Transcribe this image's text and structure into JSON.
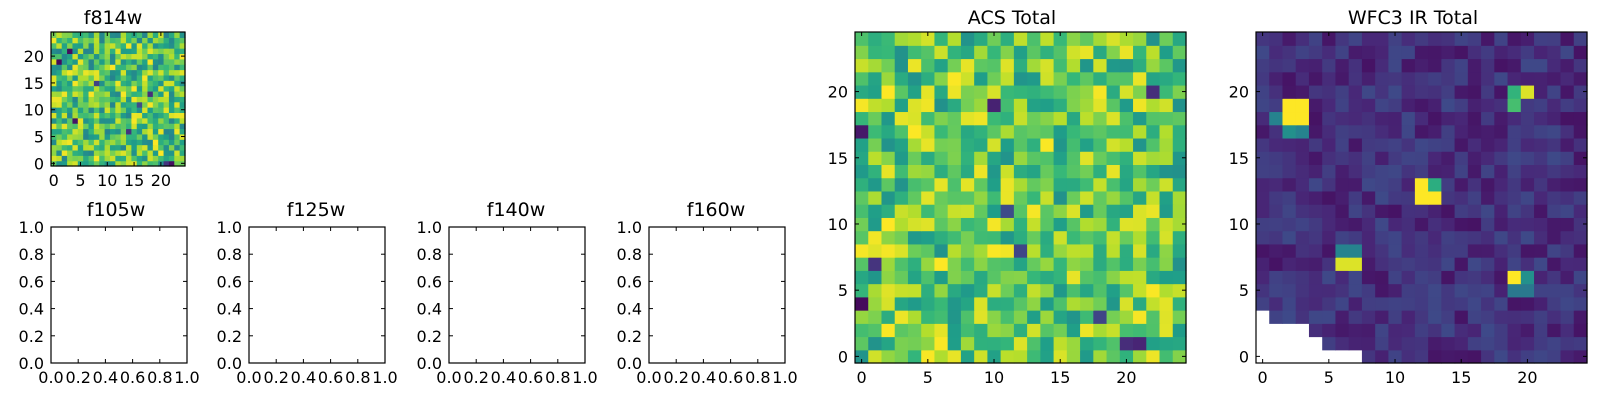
{
  "chart_data": [
    {
      "type": "heatmap",
      "title": "f814w",
      "grid_size": 25,
      "xlim": [
        -0.5,
        24.5
      ],
      "ylim": [
        -0.5,
        24.5
      ],
      "xticks": [
        0,
        5,
        10,
        15,
        20
      ],
      "yticks": [
        0,
        5,
        10,
        15,
        20
      ],
      "colormap": "viridis",
      "masked_cells": [],
      "hot_spots": [],
      "low_spots": [
        [
          1,
          19
        ],
        [
          4,
          8
        ],
        [
          8,
          15
        ],
        [
          14,
          6
        ],
        [
          16,
          11
        ],
        [
          21,
          0
        ],
        [
          22,
          0
        ],
        [
          3,
          21
        ],
        [
          18,
          13
        ]
      ],
      "base_range": [
        0.45,
        1.0
      ],
      "seed": 814
    },
    {
      "type": "heatmap",
      "title": "f105w",
      "empty": true,
      "xlim": [
        0.0,
        1.0
      ],
      "ylim": [
        0.0,
        1.0
      ],
      "xticks": [
        "0.0",
        "0.2",
        "0.4",
        "0.6",
        "0.8",
        "1.0"
      ],
      "yticks": [
        "0.0",
        "0.2",
        "0.4",
        "0.6",
        "0.8",
        "1.0"
      ]
    },
    {
      "type": "heatmap",
      "title": "f125w",
      "empty": true,
      "xlim": [
        0.0,
        1.0
      ],
      "ylim": [
        0.0,
        1.0
      ],
      "xticks": [
        "0.0",
        "0.2",
        "0.4",
        "0.6",
        "0.8",
        "1.0"
      ],
      "yticks": [
        "0.0",
        "0.2",
        "0.4",
        "0.6",
        "0.8",
        "1.0"
      ]
    },
    {
      "type": "heatmap",
      "title": "f140w",
      "empty": true,
      "xlim": [
        0.0,
        1.0
      ],
      "ylim": [
        0.0,
        1.0
      ],
      "xticks": [
        "0.0",
        "0.2",
        "0.4",
        "0.6",
        "0.8",
        "1.0"
      ],
      "yticks": [
        "0.0",
        "0.2",
        "0.4",
        "0.6",
        "0.8",
        "1.0"
      ]
    },
    {
      "type": "heatmap",
      "title": "f160w",
      "empty": true,
      "xlim": [
        0.0,
        1.0
      ],
      "ylim": [
        0.0,
        1.0
      ],
      "xticks": [
        "0.0",
        "0.2",
        "0.4",
        "0.6",
        "0.8",
        "1.0"
      ],
      "yticks": [
        "0.0",
        "0.2",
        "0.4",
        "0.6",
        "0.8",
        "1.0"
      ]
    },
    {
      "type": "heatmap",
      "title": "ACS Total",
      "grid_size": 25,
      "xlim": [
        -0.5,
        24.5
      ],
      "ylim": [
        -0.5,
        24.5
      ],
      "xticks": [
        0,
        5,
        10,
        15,
        20
      ],
      "yticks": [
        0,
        5,
        10,
        15,
        20
      ],
      "colormap": "viridis",
      "masked_cells": [],
      "hot_spots": [],
      "low_spots": [
        [
          0,
          17
        ],
        [
          0,
          4
        ],
        [
          1,
          7
        ],
        [
          10,
          19
        ],
        [
          11,
          11
        ],
        [
          20,
          1
        ],
        [
          21,
          1
        ],
        [
          22,
          20
        ],
        [
          12,
          8
        ],
        [
          18,
          3
        ]
      ],
      "base_range": [
        0.5,
        1.0
      ],
      "seed": 2024
    },
    {
      "type": "heatmap",
      "title": "WFC3 IR Total",
      "grid_size": 25,
      "xlim": [
        -0.5,
        24.5
      ],
      "ylim": [
        -0.5,
        24.5
      ],
      "xticks": [
        0,
        5,
        10,
        15,
        20
      ],
      "yticks": [
        0,
        5,
        10,
        15,
        20
      ],
      "colormap": "viridis",
      "masked_cells": [
        [
          0,
          0
        ],
        [
          1,
          0
        ],
        [
          2,
          0
        ],
        [
          3,
          0
        ],
        [
          4,
          0
        ],
        [
          5,
          0
        ],
        [
          6,
          0
        ],
        [
          7,
          0
        ],
        [
          0,
          1
        ],
        [
          1,
          1
        ],
        [
          2,
          1
        ],
        [
          3,
          1
        ],
        [
          4,
          1
        ],
        [
          0,
          2
        ],
        [
          1,
          2
        ],
        [
          2,
          2
        ],
        [
          3,
          2
        ],
        [
          0,
          3
        ]
      ],
      "hot_spots": [
        {
          "x": 2,
          "y": 19,
          "v": 1.0
        },
        {
          "x": 3,
          "y": 19,
          "v": 1.0
        },
        {
          "x": 2,
          "y": 18,
          "v": 1.0
        },
        {
          "x": 3,
          "y": 18,
          "v": 1.0
        },
        {
          "x": 1,
          "y": 18,
          "v": 0.45
        },
        {
          "x": 2,
          "y": 17,
          "v": 0.5
        },
        {
          "x": 3,
          "y": 17,
          "v": 0.45
        },
        {
          "x": 19,
          "y": 20,
          "v": 0.65
        },
        {
          "x": 20,
          "y": 20,
          "v": 0.95
        },
        {
          "x": 19,
          "y": 19,
          "v": 0.7
        },
        {
          "x": 12,
          "y": 13,
          "v": 1.0
        },
        {
          "x": 13,
          "y": 13,
          "v": 0.62
        },
        {
          "x": 12,
          "y": 12,
          "v": 1.0
        },
        {
          "x": 13,
          "y": 12,
          "v": 1.0
        },
        {
          "x": 6,
          "y": 8,
          "v": 0.45
        },
        {
          "x": 7,
          "y": 8,
          "v": 0.45
        },
        {
          "x": 6,
          "y": 7,
          "v": 0.95
        },
        {
          "x": 7,
          "y": 7,
          "v": 0.95
        },
        {
          "x": 19,
          "y": 6,
          "v": 1.0
        },
        {
          "x": 20,
          "y": 6,
          "v": 0.5
        },
        {
          "x": 19,
          "y": 5,
          "v": 0.4
        },
        {
          "x": 20,
          "y": 5,
          "v": 0.4
        }
      ],
      "low_spots": [],
      "base_range": [
        0.05,
        0.22
      ],
      "seed": 3110
    }
  ]
}
